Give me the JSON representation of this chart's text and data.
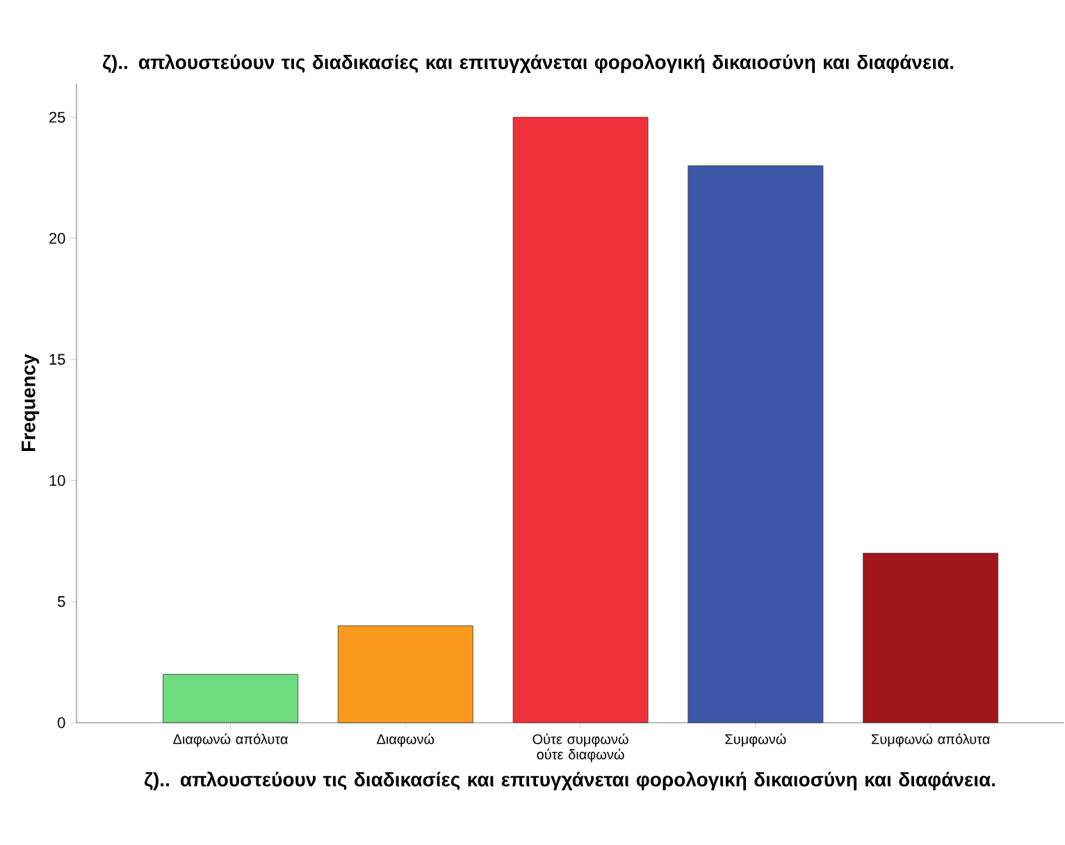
{
  "chart_data": {
    "type": "bar",
    "title": "ζ).. απλουστεύουν τις διαδικασίες και επιτυγχάνεται φορολογική δικαιοσύνη και διαφάνεια.",
    "xlabel": "ζ).. απλουστεύουν τις διαδικασίες και επιτυγχάνεται φορολογική δικαιοσύνη και διαφάνεια.",
    "ylabel": "Frequency",
    "categories": [
      "Διαφωνώ απόλυτα",
      "Διαφωνώ",
      "Ούτε συμφωνώ ούτε διαφωνώ",
      "Συμφωνώ",
      "Συμφωνώ απόλυτα"
    ],
    "values": [
      2,
      4,
      25,
      23,
      7
    ],
    "colors": [
      "#6fdc80",
      "#f99a1f",
      "#f0303a",
      "#3d57a8",
      "#a0161b"
    ],
    "ylim": [
      0,
      26.4
    ],
    "yticks": [
      0,
      5,
      10,
      15,
      20,
      25
    ],
    "grid": false
  }
}
